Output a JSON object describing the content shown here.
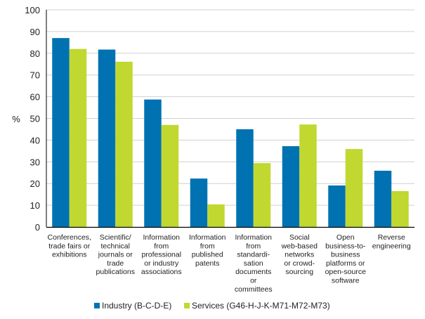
{
  "chart_data": {
    "type": "bar",
    "title": "",
    "xlabel": "",
    "ylabel": "%",
    "ylim": [
      0,
      100
    ],
    "yticks": [
      0,
      10,
      20,
      30,
      40,
      50,
      60,
      70,
      80,
      90,
      100
    ],
    "grid": true,
    "legend_position": "bottom",
    "categories": [
      [
        "Conferences,",
        "trade fairs or",
        "exhibitions"
      ],
      [
        "Scientific/",
        "technical",
        "journals or",
        "trade",
        "publications"
      ],
      [
        "Information",
        "from",
        "professional",
        "or industry",
        "associations"
      ],
      [
        "Information",
        "from",
        "published",
        "patents"
      ],
      [
        "Information",
        "from",
        "standardi-",
        "sation",
        "documents",
        "or",
        "committees"
      ],
      [
        "Social",
        "web-based",
        "networks",
        "or crowd-",
        "sourcing"
      ],
      [
        "Open",
        "business-to-",
        "business",
        "platforms or",
        "open-source",
        "software"
      ],
      [
        "Reverse",
        "engineering"
      ]
    ],
    "series": [
      {
        "name": "Industry (B-C-D-E)",
        "color": "#0072b2",
        "values": [
          87,
          81.7,
          58.7,
          22.3,
          45,
          37.2,
          19.1,
          25.9
        ]
      },
      {
        "name": "Services (G46-H-J-K-M71-M72-M73)",
        "color": "#c0d830",
        "values": [
          82,
          76.1,
          47,
          10.4,
          29.4,
          47.2,
          35.9,
          16.5
        ]
      }
    ]
  }
}
